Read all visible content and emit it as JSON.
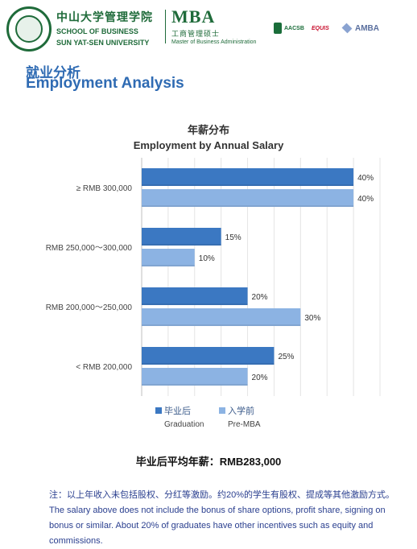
{
  "header": {
    "school_cn": "中山大学管理学院",
    "school_en_line1": "SCHOOL OF BUSINESS",
    "school_en_line2": "SUN YAT-SEN UNIVERSITY",
    "program_title": "MBA",
    "program_cn": "工商管理硕士",
    "program_en": "Master of Business Administration",
    "accreditations": [
      "AACSB",
      "EQUIS",
      "AMBA"
    ],
    "brand_color": "#1f6b3a"
  },
  "page_title_cn": "就业分析",
  "page_title_en": "Employment Analysis",
  "chart_data": {
    "type": "bar",
    "orientation": "horizontal",
    "title_cn": "年薪分布",
    "title_en": "Employment by Annual Salary",
    "categories": [
      "≥ RMB 300,000",
      "RMB 250,000～300,000",
      "RMB 200,000～250,000",
      "< RMB 200,000"
    ],
    "series": [
      {
        "name": "毕业后",
        "name_en": "Graduation",
        "values": [
          40,
          15,
          20,
          25
        ],
        "color": "#3b78c2"
      },
      {
        "name": "入学前",
        "name_en": "Pre-MBA",
        "values": [
          40,
          10,
          30,
          20
        ],
        "color": "#8cb3e3"
      }
    ],
    "value_suffix": "%",
    "xlim": [
      0,
      45
    ],
    "grid": true,
    "legend_position": "bottom"
  },
  "average": "毕业后平均年薪：RMB283,000",
  "note_cn": "注：以上年收入未包括股权、分红等激励。约20%的学生有股权、提成等其他激励方式。",
  "note_en": "The salary above does not include the bonus of share options, profit share, signing on bonus or similar. About 20% of graduates have other incentives such as equity and commissions."
}
